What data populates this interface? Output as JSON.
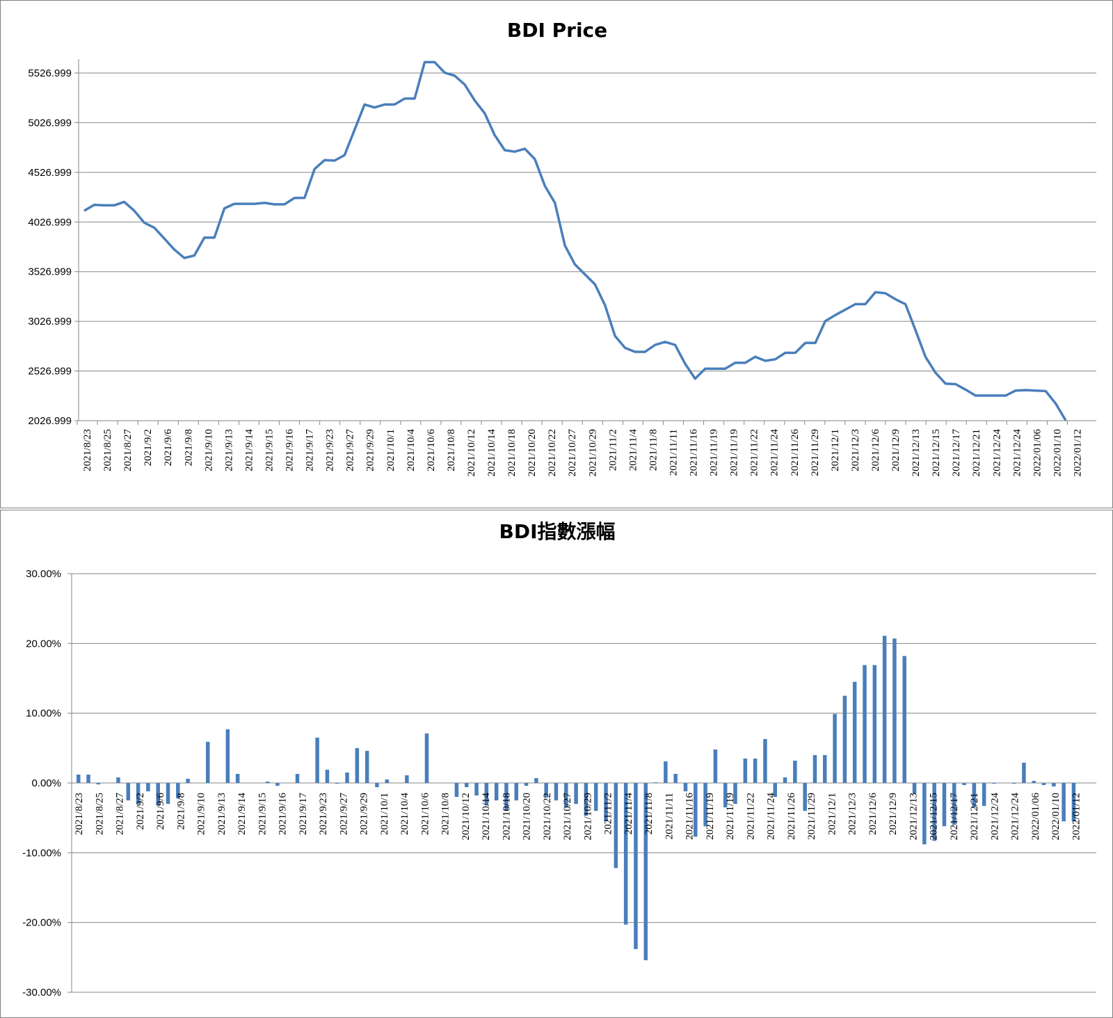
{
  "chart_data": [
    {
      "type": "line",
      "title": "BDI Price",
      "xlabel": "",
      "ylabel": "",
      "ylim": [
        2026.999,
        5526.999
      ],
      "yticks": [
        "2026.999",
        "2526.999",
        "3026.999",
        "3526.999",
        "4026.999",
        "4526.999",
        "5026.999",
        "5526.999"
      ],
      "grid": true,
      "color": "#4a7ebb",
      "tick_labels": [
        "2021/8/23",
        "2021/8/25",
        "2021/8/27",
        "2021/9/2",
        "2021/9/6",
        "2021/9/8",
        "2021/9/10",
        "2021/9/13",
        "2021/9/14",
        "2021/9/15",
        "2021/9/16",
        "2021/9/17",
        "2021/9/23",
        "2021/9/27",
        "2021/9/29",
        "2021/10/1",
        "2021/10/4",
        "2021/10/6",
        "2021/10/8",
        "2021/10/12",
        "2021/10/14",
        "2021/10/18",
        "2021/10/20",
        "2021/10/22",
        "2021/10/27",
        "2021/10/29",
        "2021/11/2",
        "2021/11/4",
        "2021/11/8",
        "2021/11/11",
        "2021/11/16",
        "2021/11/19",
        "2021/11/19",
        "2021/11/22",
        "2021/11/24",
        "2021/11/26",
        "2021/11/29",
        "2021/12/1",
        "2021/12/3",
        "2021/12/6",
        "2021/12/9",
        "2021/12/13",
        "2021/12/15",
        "2021/12/17",
        "2021/12/21",
        "2021/12/24",
        "2021/12/24",
        "2022/01/06",
        "2022/01/10",
        "2022/01/12"
      ],
      "values": [
        4140,
        4200,
        4195,
        4195,
        4230,
        4140,
        4020,
        3970,
        3860,
        3750,
        3665,
        3690,
        3870,
        3870,
        4165,
        4210,
        4210,
        4210,
        4220,
        4205,
        4205,
        4270,
        4270,
        4560,
        4650,
        4645,
        4700,
        4955,
        5210,
        5180,
        5210,
        5210,
        5270,
        5270,
        5636,
        5636,
        5530,
        5500,
        5410,
        5250,
        5120,
        4900,
        4750,
        4735,
        4765,
        4660,
        4390,
        4220,
        3790,
        3600,
        3500,
        3400,
        3190,
        2880,
        2760,
        2720,
        2720,
        2790,
        2820,
        2790,
        2600,
        2450,
        2550,
        2550,
        2550,
        2610,
        2610,
        2670,
        2630,
        2645,
        2710,
        2710,
        2810,
        2810,
        3030,
        3090,
        3145,
        3200,
        3200,
        3320,
        3310,
        3250,
        3200,
        2940,
        2670,
        2510,
        2400,
        2395,
        2340,
        2280,
        2280,
        2280,
        2280,
        2330,
        2335,
        2330,
        2325,
        2200,
        2030
      ]
    },
    {
      "type": "bar",
      "title": "BDI指數漲幅",
      "xlabel": "",
      "ylabel": "",
      "ylim": [
        -0.3,
        0.3
      ],
      "yticks": [
        "-30.00%",
        "-20.00%",
        "-10.00%",
        "0.00%",
        "10.00%",
        "20.00%",
        "30.00%"
      ],
      "grid": true,
      "color": "#4a7ebb",
      "tick_labels": [
        "2021/8/23",
        "2021/8/25",
        "2021/8/27",
        "2021/9/2",
        "2021/9/6",
        "2021/9/8",
        "2021/9/10",
        "2021/9/13",
        "2021/9/14",
        "2021/9/15",
        "2021/9/16",
        "2021/9/17",
        "2021/9/23",
        "2021/9/27",
        "2021/9/29",
        "2021/10/1",
        "2021/10/4",
        "2021/10/6",
        "2021/10/8",
        "2021/10/12",
        "2021/10/14",
        "2021/10/18",
        "2021/10/20",
        "2021/10/22",
        "2021/10/27",
        "2021/10/29",
        "2021/11/2",
        "2021/11/4",
        "2021/11/8",
        "2021/11/11",
        "2021/11/16",
        "2021/11/19",
        "2021/11/19",
        "2021/11/22",
        "2021/11/24",
        "2021/11/26",
        "2021/11/29",
        "2021/12/1",
        "2021/12/3",
        "2021/12/6",
        "2021/12/9",
        "2021/12/13",
        "2021/12/15",
        "2021/12/17",
        "2021/12/21",
        "2021/12/24",
        "2021/12/24",
        "2022/01/06",
        "2022/01/10",
        "2022/01/12"
      ],
      "values": [
        0.012,
        0.012,
        -0.002,
        0,
        0.008,
        -0.025,
        -0.03,
        -0.012,
        -0.032,
        -0.03,
        -0.022,
        0.006,
        0,
        0.059,
        0,
        0.077,
        0.013,
        0,
        0,
        0.002,
        -0.004,
        0,
        0.013,
        0,
        0.065,
        0.019,
        -0.001,
        0.015,
        0.05,
        0.046,
        -0.006,
        0.005,
        0,
        0.011,
        0,
        0.071,
        0,
        0,
        -0.02,
        -0.006,
        -0.018,
        -0.032,
        -0.025,
        -0.04,
        -0.025,
        -0.004,
        0.007,
        -0.021,
        -0.025,
        -0.035,
        -0.03,
        -0.047,
        -0.04,
        -0.055,
        -0.122,
        -0.203,
        -0.238,
        -0.254,
        0.001,
        0.031,
        0.013,
        -0.012,
        -0.077,
        -0.062,
        0.048,
        -0.035,
        -0.03,
        0.035,
        0.035,
        0.063,
        -0.02,
        0.008,
        0.032,
        -0.04,
        0.04,
        0.04,
        0.099,
        0.125,
        0.145,
        0.169,
        0.169,
        0.211,
        0.207,
        0.182,
        -0.015,
        -0.088,
        -0.083,
        -0.062,
        -0.06,
        -0.003,
        -0.035,
        -0.033,
        -0.001,
        0,
        -0.001,
        0.029,
        0.003,
        -0.003,
        -0.005,
        -0.055,
        -0.055
      ]
    }
  ]
}
